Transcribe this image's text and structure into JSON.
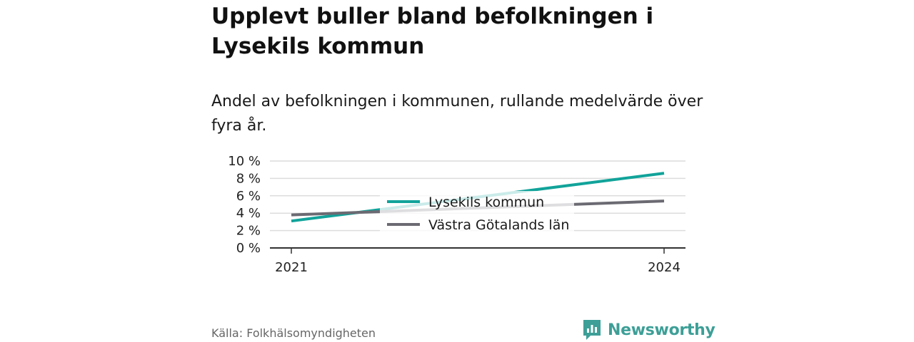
{
  "header": {
    "title": "Upplevt buller bland befolkningen i Lysekils kommun",
    "subtitle": "Andel av befolkningen i kommunen, rullande medelvärde över fyra år."
  },
  "footer": {
    "source": "Källa: Folkhälsomyndigheten",
    "brand": "Newsworthy"
  },
  "colors": {
    "lysekil": "#11a39a",
    "vastra_gotaland": "#6b6a72",
    "grid": "#dcdcdc",
    "axis": "#333333",
    "brand": "#3d9f97"
  },
  "chart_data": {
    "type": "line",
    "title": "",
    "xlabel": "",
    "ylabel": "",
    "x": [
      2021,
      2024
    ],
    "xticks": [
      "2021",
      "2024"
    ],
    "yticks": [
      "0 %",
      "2 %",
      "4 %",
      "6 %",
      "8 %",
      "10 %"
    ],
    "ylim": [
      0,
      10
    ],
    "grid": true,
    "legend_position": "center",
    "series": [
      {
        "name": "Lysekils kommun",
        "values": [
          3.1,
          8.6
        ],
        "color": "#11a39a"
      },
      {
        "name": "Västra Götalands län",
        "values": [
          3.8,
          5.4
        ],
        "color": "#6b6a72"
      }
    ]
  }
}
